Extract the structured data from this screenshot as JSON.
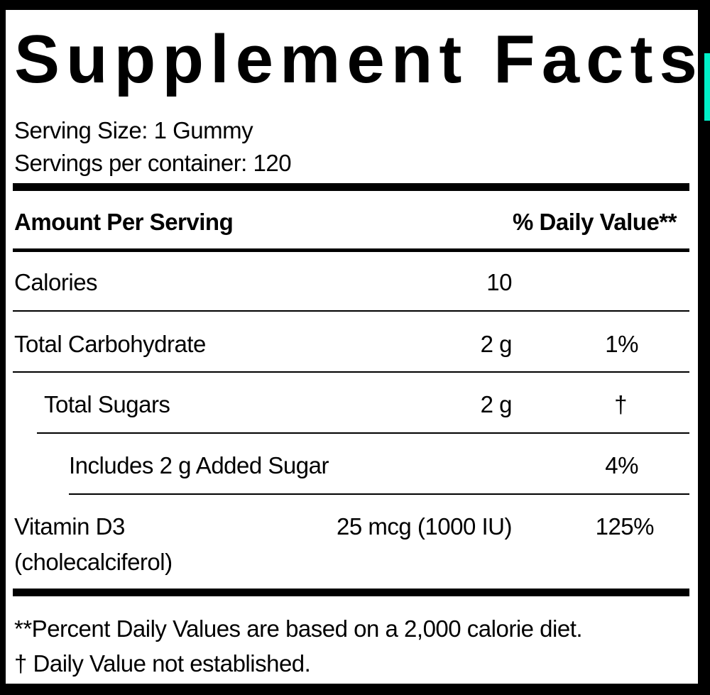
{
  "title": "Supplement Facts",
  "serving_size": "Serving Size: 1 Gummy",
  "servings_per_container": "Servings per container: 120",
  "header": {
    "amount": "Amount Per Serving",
    "dv": "% Daily Value**"
  },
  "rows": [
    {
      "name": "Calories",
      "amount": "10",
      "dv": ""
    },
    {
      "name": "Total Carbohydrate",
      "amount": "2 g",
      "dv": "1%"
    },
    {
      "name": "Total Sugars",
      "amount": "2 g",
      "dv": "†"
    },
    {
      "name": "Includes 2 g Added Sugar",
      "amount": "",
      "dv": "4%"
    },
    {
      "name": "Vitamin D3",
      "name_line2": "(cholecalciferol)",
      "amount": "25 mcg (1000 IU)",
      "dv": "125%"
    }
  ],
  "footnotes": [
    "**Percent Daily Values are based on a 2,000 calorie diet.",
    "†  Daily Value not established."
  ],
  "colors": {
    "background": "#000000",
    "panel": "#ffffff",
    "accent": "#00f0c8"
  }
}
